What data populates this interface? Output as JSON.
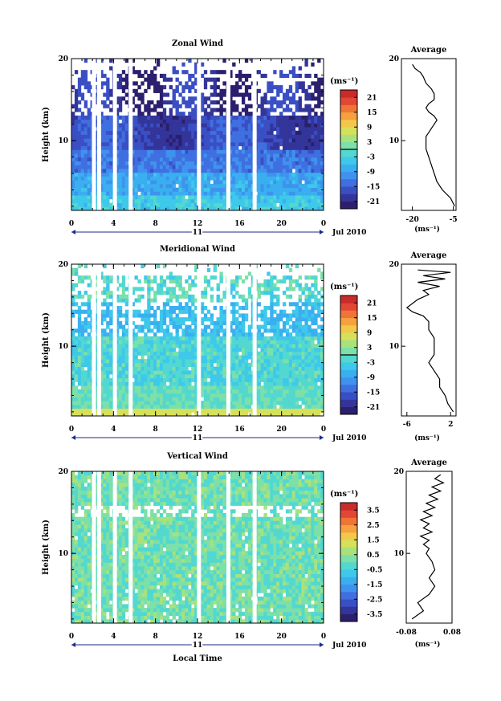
{
  "chart_data": [
    {
      "type": "heatmap",
      "title": "Zonal Wind",
      "ylabel": "Height (km)",
      "unit_label": "(ms⁻¹)",
      "x_ticks": [
        "0",
        "4",
        "8",
        "12",
        "16",
        "20",
        "0"
      ],
      "x_range": [
        0,
        24
      ],
      "y_ticks": [
        "10",
        "20"
      ],
      "y_range": [
        1.5,
        20
      ],
      "date_day": "11",
      "date_month": "Jul 2010",
      "colorbar_ticks": [
        "21",
        "15",
        "9",
        "3",
        "-3",
        "-9",
        "-15",
        "-21"
      ],
      "colorbar_range": [
        -24,
        24
      ],
      "zero_line": 0,
      "data_gaps_hours": [
        2.1,
        2.6,
        4.1,
        5.6,
        12.1,
        14.9,
        17.4
      ],
      "profile_points_ms": [
        [
          -20,
          19.3
        ],
        [
          -19,
          18.8
        ],
        [
          -17,
          18.3
        ],
        [
          -16,
          17.8
        ],
        [
          -15,
          17.0
        ],
        [
          -13,
          16.3
        ],
        [
          -12,
          15.7
        ],
        [
          -12,
          15.0
        ],
        [
          -14,
          14.5
        ],
        [
          -15,
          14.0
        ],
        [
          -14,
          13.5
        ],
        [
          -12,
          13.0
        ],
        [
          -11,
          12.5
        ],
        [
          -12,
          12.0
        ],
        [
          -13,
          11.5
        ],
        [
          -14,
          11.0
        ],
        [
          -15,
          10.5
        ],
        [
          -15,
          10.0
        ],
        [
          -15,
          9.0
        ],
        [
          -14,
          8.0
        ],
        [
          -13,
          7.0
        ],
        [
          -12,
          6.0
        ],
        [
          -11,
          5.0
        ],
        [
          -9,
          4.0
        ],
        [
          -6,
          3.0
        ],
        [
          -4.5,
          2.0
        ]
      ],
      "profile_title": "Average",
      "profile_x_ticks": [
        "-20",
        "-5"
      ],
      "profile_x_range": [
        -24,
        -4
      ],
      "profile_y_ticks": [
        "10",
        "20"
      ],
      "profile_xlabel": "(ms⁻¹)"
    },
    {
      "type": "heatmap",
      "title": "Meridional Wind",
      "ylabel": "Height (km)",
      "unit_label": "(ms⁻¹)",
      "x_ticks": [
        "0",
        "4",
        "8",
        "12",
        "16",
        "20",
        "0"
      ],
      "x_range": [
        0,
        24
      ],
      "y_ticks": [
        "10",
        "20"
      ],
      "y_range": [
        1.5,
        20
      ],
      "date_day": "11",
      "date_month": "Jul 2010",
      "colorbar_ticks": [
        "21",
        "15",
        "9",
        "3",
        "-3",
        "-9",
        "-15",
        "-21"
      ],
      "colorbar_range": [
        -24,
        24
      ],
      "zero_line": 0,
      "data_gaps_hours": [
        2.1,
        2.6,
        4.1,
        5.6,
        12.1,
        14.9,
        17.4
      ],
      "profile_points_ms": [
        [
          -4,
          19.3
        ],
        [
          2,
          19.0
        ],
        [
          -3,
          18.6
        ],
        [
          1,
          18.2
        ],
        [
          -4,
          17.8
        ],
        [
          0,
          17.3
        ],
        [
          -3,
          16.8
        ],
        [
          -2,
          16.3
        ],
        [
          -4,
          15.7
        ],
        [
          -5,
          15.2
        ],
        [
          -6,
          14.7
        ],
        [
          -5,
          14.2
        ],
        [
          -3,
          13.7
        ],
        [
          -2,
          13.0
        ],
        [
          -2,
          12.0
        ],
        [
          -1,
          11.0
        ],
        [
          -1,
          10.0
        ],
        [
          -1,
          9.0
        ],
        [
          -2,
          8.0
        ],
        [
          -1,
          7.0
        ],
        [
          0,
          6.0
        ],
        [
          0,
          5.0
        ],
        [
          1,
          4.0
        ],
        [
          1.5,
          3.0
        ],
        [
          2.5,
          2.0
        ]
      ],
      "profile_title": "Average",
      "profile_x_ticks": [
        "-6",
        "2"
      ],
      "profile_x_range": [
        -7,
        3
      ],
      "profile_y_ticks": [
        "10",
        "20"
      ],
      "profile_xlabel": "(ms⁻¹)"
    },
    {
      "type": "heatmap",
      "title": "Vertical Wind",
      "ylabel": "Height (km)",
      "xlabel": "Local Time",
      "unit_label": "(ms⁻¹)",
      "x_ticks": [
        "0",
        "4",
        "8",
        "12",
        "16",
        "20",
        "0"
      ],
      "x_range": [
        0,
        24
      ],
      "y_ticks": [
        "10",
        "20"
      ],
      "y_range": [
        1.5,
        20
      ],
      "date_day": "11",
      "date_month": "Jul 2010",
      "colorbar_ticks": [
        "3.5",
        "2.5",
        "1.5",
        "0.5",
        "-0.5",
        "-1.5",
        "-2.5",
        "-3.5"
      ],
      "colorbar_range": [
        -4,
        4
      ],
      "data_gaps_hours": [
        2.1,
        2.6,
        4.1,
        5.6,
        12.1,
        14.9,
        17.4
      ],
      "profile_points_ms": [
        [
          0.04,
          19.6
        ],
        [
          0.02,
          19.1
        ],
        [
          0.05,
          18.6
        ],
        [
          0.01,
          18.1
        ],
        [
          0.04,
          17.6
        ],
        [
          0.0,
          17.1
        ],
        [
          0.03,
          16.6
        ],
        [
          -0.01,
          16.1
        ],
        [
          0.02,
          15.6
        ],
        [
          -0.02,
          15.1
        ],
        [
          0.01,
          14.6
        ],
        [
          -0.03,
          14.1
        ],
        [
          0.0,
          13.6
        ],
        [
          -0.02,
          13.1
        ],
        [
          0.01,
          12.6
        ],
        [
          -0.03,
          12.1
        ],
        [
          0.0,
          11.6
        ],
        [
          -0.02,
          11.1
        ],
        [
          0.0,
          10.6
        ],
        [
          -0.01,
          10.0
        ],
        [
          0.01,
          9.0
        ],
        [
          0.02,
          8.0
        ],
        [
          0.0,
          7.0
        ],
        [
          0.02,
          6.0
        ],
        [
          0.0,
          5.0
        ],
        [
          -0.04,
          4.0
        ],
        [
          -0.02,
          3.0
        ],
        [
          -0.06,
          2.0
        ]
      ],
      "profile_title": "Average",
      "profile_x_ticks": [
        "-0.08",
        "0.08"
      ],
      "profile_x_range": [
        -0.08,
        0.08
      ],
      "profile_y_ticks": [
        "10",
        "20"
      ],
      "profile_xlabel": "(ms⁻¹)"
    }
  ],
  "colors": {
    "white": "#ffffff",
    "black": "#000000"
  }
}
